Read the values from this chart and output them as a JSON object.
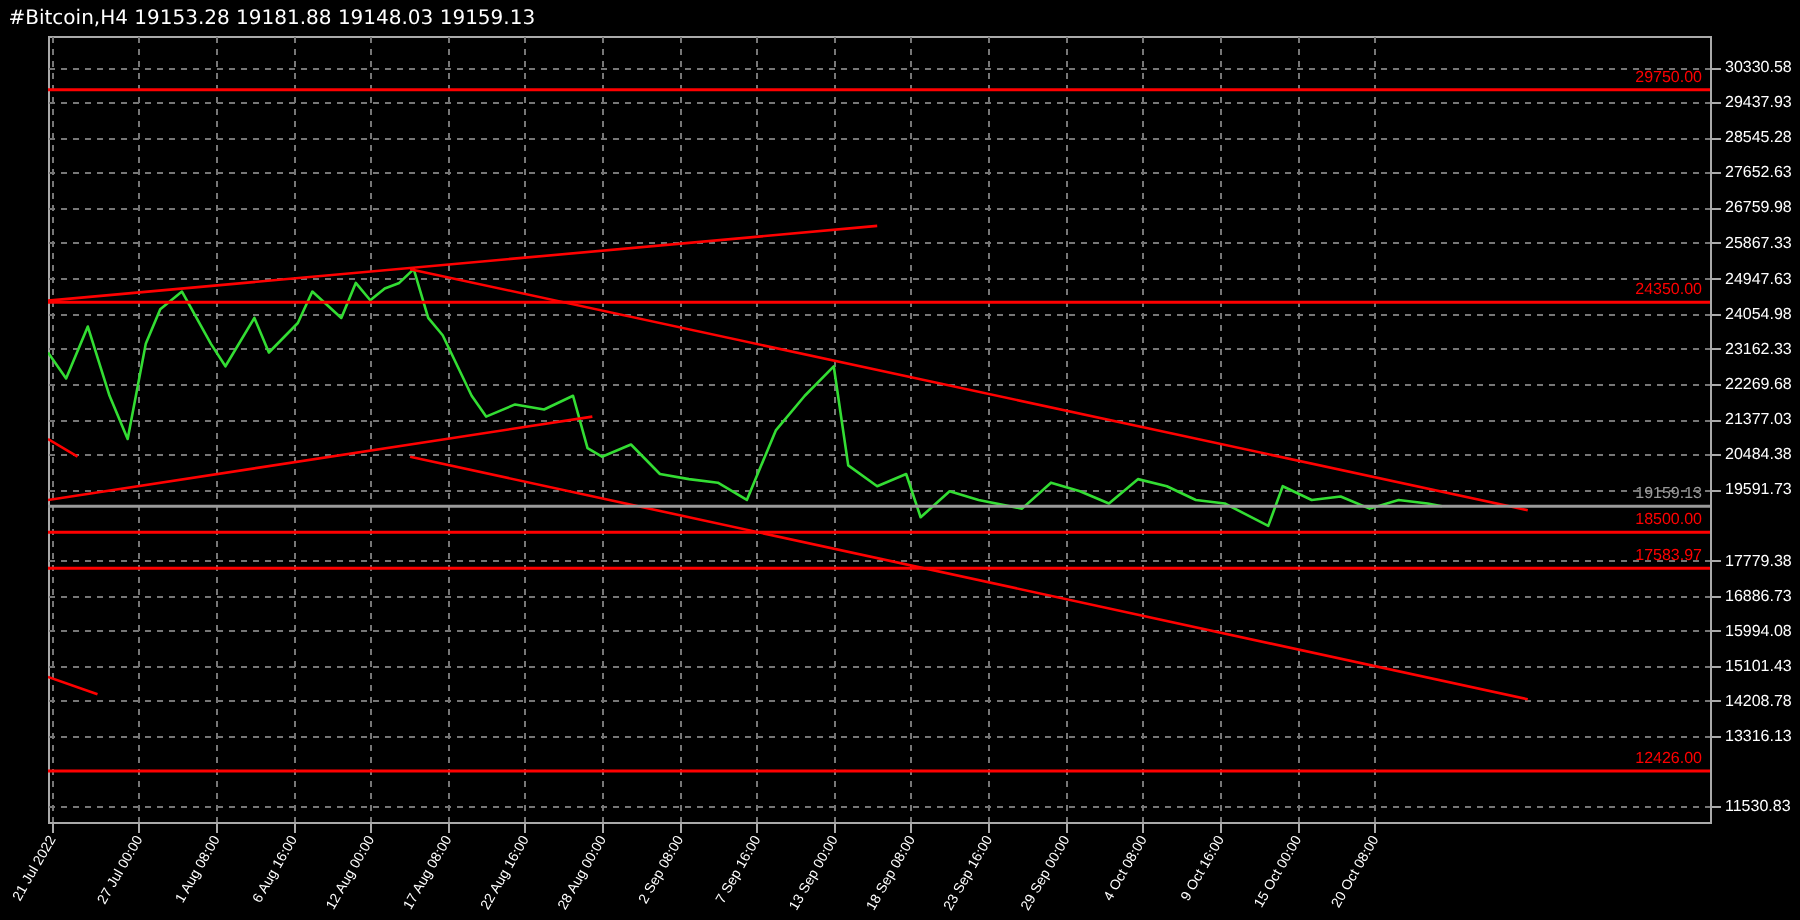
{
  "chart_data": {
    "type": "line",
    "title": "#Bitcoin,H4  19153.28 19181.88 19148.03 19159.13",
    "xlim": [
      "2022-07-20T18:00",
      "2022-11-12T12:00"
    ],
    "xticks": [
      {
        "value": "2022-07-21T00:00",
        "label": "21 Jul 2022"
      },
      {
        "value": "2022-07-27T00:00",
        "label": "27 Jul 00:00"
      },
      {
        "value": "2022-08-01T08:00",
        "label": "1 Aug 08:00"
      },
      {
        "value": "2022-08-06T16:00",
        "label": "6 Aug 16:00"
      },
      {
        "value": "2022-08-12T00:00",
        "label": "12 Aug 00:00"
      },
      {
        "value": "2022-08-17T08:00",
        "label": "17 Aug 08:00"
      },
      {
        "value": "2022-08-22T16:00",
        "label": "22 Aug 16:00"
      },
      {
        "value": "2022-08-28T00:00",
        "label": "28 Aug 00:00"
      },
      {
        "value": "2022-09-02T08:00",
        "label": "2 Sep 08:00"
      },
      {
        "value": "2022-09-07T16:00",
        "label": "7 Sep 16:00"
      },
      {
        "value": "2022-09-13T00:00",
        "label": "13 Sep 00:00"
      },
      {
        "value": "2022-09-18T08:00",
        "label": "18 Sep 08:00"
      },
      {
        "value": "2022-09-23T16:00",
        "label": "23 Sep 16:00"
      },
      {
        "value": "2022-09-29T00:00",
        "label": "29 Sep 00:00"
      },
      {
        "value": "2022-10-04T08:00",
        "label": "4 Oct 08:00"
      },
      {
        "value": "2022-10-09T16:00",
        "label": "9 Oct 16:00"
      },
      {
        "value": "2022-10-15T00:00",
        "label": "15 Oct 00:00"
      },
      {
        "value": "2022-10-20T08:00",
        "label": "20 Oct 08:00"
      }
    ],
    "ylim": [
      11130,
      31120
    ],
    "yticks": [
      30330.58,
      29437.93,
      28545.28,
      27652.63,
      26759.98,
      25867.33,
      24947.63,
      24054.98,
      23162.33,
      22269.68,
      21377.03,
      20484.38,
      19591.73,
      17779.38,
      16886.73,
      15994.08,
      15101.43,
      14208.78,
      13316.13,
      11530.83
    ],
    "grid": true,
    "marker": "none",
    "line_style": "solid",
    "series": [
      {
        "color": "#33dd33",
        "x": [
          "2022-07-20T18:00",
          "2022-07-22T00:00",
          "2022-07-23T12:00",
          "2022-07-25T00:00",
          "2022-07-26T06:00",
          "2022-07-27T12:00",
          "2022-07-28T12:00",
          "2022-07-30T00:00",
          "2022-08-01T00:00",
          "2022-08-02T00:00",
          "2022-08-04T00:00",
          "2022-08-05T00:00",
          "2022-08-07T00:00",
          "2022-08-08T00:00",
          "2022-08-10T00:00",
          "2022-08-11T00:00",
          "2022-08-12T00:00",
          "2022-08-13T00:00",
          "2022-08-14T00:00",
          "2022-08-15T00:00",
          "2022-08-16T00:00",
          "2022-08-17T00:00",
          "2022-08-19T00:00",
          "2022-08-20T00:00",
          "2022-08-22T00:00",
          "2022-08-24T00:00",
          "2022-08-26T00:00",
          "2022-08-27T00:00",
          "2022-08-28T00:00",
          "2022-08-30T00:00",
          "2022-09-01T00:00",
          "2022-09-03T00:00",
          "2022-09-05T00:00",
          "2022-09-07T00:00",
          "2022-09-09T00:00",
          "2022-09-11T00:00",
          "2022-09-13T00:00",
          "2022-09-14T00:00",
          "2022-09-16T00:00",
          "2022-09-18T00:00",
          "2022-09-19T00:00",
          "2022-09-21T00:00",
          "2022-09-23T00:00",
          "2022-09-26T00:00",
          "2022-09-28T00:00",
          "2022-09-30T00:00",
          "2022-10-02T00:00",
          "2022-10-04T00:00",
          "2022-10-06T00:00",
          "2022-10-08T00:00",
          "2022-10-10T00:00",
          "2022-10-13T00:00",
          "2022-10-14T00:00",
          "2022-10-16T00:00",
          "2022-10-18T00:00",
          "2022-10-20T00:00",
          "2022-10-22T00:00",
          "2022-10-24T00:00",
          "2022-10-25T00:00"
        ],
        "values": [
          23070,
          22410,
          23730,
          21970,
          20870,
          23290,
          24170,
          24620,
          23290,
          22720,
          23950,
          23070,
          23820,
          24620,
          23950,
          24840,
          24400,
          24700,
          24840,
          25190,
          23950,
          23510,
          21970,
          21440,
          21750,
          21620,
          21970,
          20640,
          20420,
          20730,
          19980,
          19850,
          19760,
          19320,
          21090,
          21970,
          22720,
          20200,
          19670,
          19980,
          18880,
          19540,
          19320,
          19100,
          19760,
          19540,
          19230,
          19850,
          19670,
          19320,
          19230,
          18660,
          19670,
          19320,
          19410,
          19100,
          19320,
          19230,
          19160
        ]
      },
      {
        "color": "#ff0000",
        "x": [
          "2022-07-20T18:00",
          "2022-09-16T00:00"
        ],
        "values": [
          24390,
          26290
        ]
      },
      {
        "color": "#ff0000",
        "x": [
          "2022-07-20T18:00",
          "2022-08-27T08:00"
        ],
        "values": [
          19320,
          21440
        ]
      },
      {
        "color": "#ff0000",
        "x": [
          "2022-08-14T18:00",
          "2022-10-30T22:00"
        ],
        "values": [
          25190,
          19060
        ]
      },
      {
        "color": "#ff0000",
        "x": [
          "2022-08-14T18:00",
          "2022-10-30T22:00"
        ],
        "values": [
          20420,
          14250
        ]
      },
      {
        "color": "#ff0000",
        "x": [
          "2022-07-20T18:00",
          "2022-07-22T19:00"
        ],
        "values": [
          20870,
          20420
        ]
      },
      {
        "color": "#ff0000",
        "x": [
          "2022-07-20T18:00",
          "2022-07-24T04:00"
        ],
        "values": [
          14820,
          14380
        ]
      }
    ],
    "ref_lines": [
      {
        "axis": "y",
        "value": 29750,
        "label": "29750.00",
        "color": "#ff0000"
      },
      {
        "axis": "y",
        "value": 24350,
        "label": "24350.00",
        "color": "#ff0000"
      },
      {
        "axis": "y",
        "value": 19159.13,
        "label": "19159.13",
        "color": "#9a9a9a"
      },
      {
        "axis": "y",
        "value": 18500,
        "label": "18500.00",
        "color": "#ff0000"
      },
      {
        "axis": "y",
        "value": 17583.97,
        "label": "17583.97",
        "color": "#ff0000"
      },
      {
        "axis": "y",
        "value": 12426,
        "label": "12426.00",
        "color": "#ff0000"
      }
    ]
  }
}
